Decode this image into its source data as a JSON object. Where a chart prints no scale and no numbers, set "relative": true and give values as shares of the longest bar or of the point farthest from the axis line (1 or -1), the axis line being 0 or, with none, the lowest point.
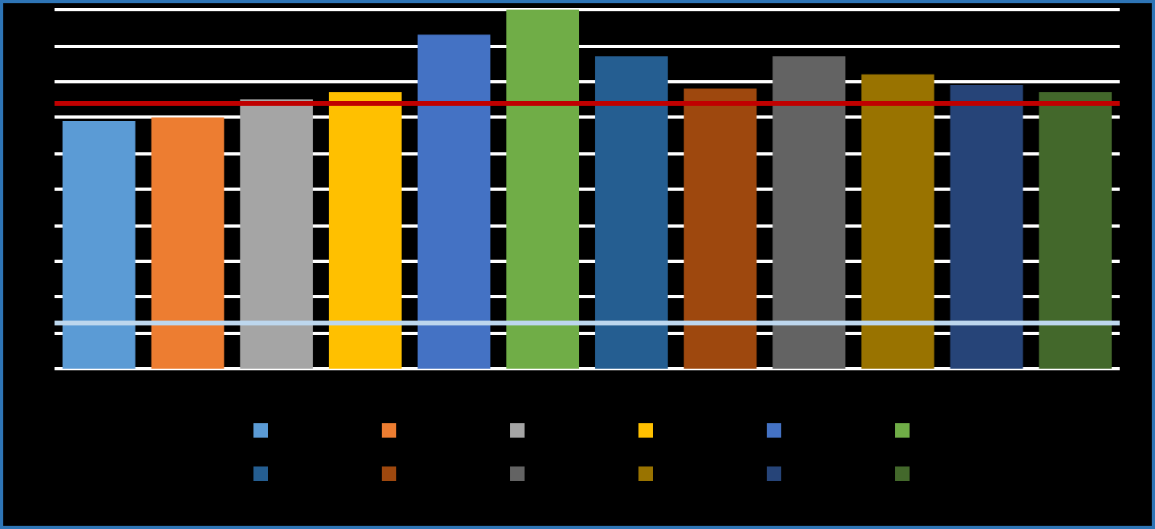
{
  "chart_data": {
    "type": "bar",
    "relative": true,
    "categories": [
      null,
      null,
      null,
      null,
      null,
      null,
      null,
      null,
      null,
      null,
      null,
      null
    ],
    "values": [
      0.69,
      0.7,
      0.75,
      0.77,
      0.93,
      1,
      0.87,
      0.78,
      0.87,
      0.82,
      0.79,
      0.77
    ],
    "colors": [
      "#5b9bd5",
      "#ed7d31",
      "#a5a5a5",
      "#ffc000",
      "#4472c4",
      "#70ad47",
      "#255e91",
      "#9e480e",
      "#636363",
      "#997300",
      "#264478",
      "#43682b"
    ],
    "ref_lines": [
      {
        "axis": "y",
        "value": 0.74,
        "color": "#c00000"
      },
      {
        "axis": "y",
        "value": 0.13,
        "color": "#bdd7ee"
      }
    ],
    "grid": "y"
  }
}
